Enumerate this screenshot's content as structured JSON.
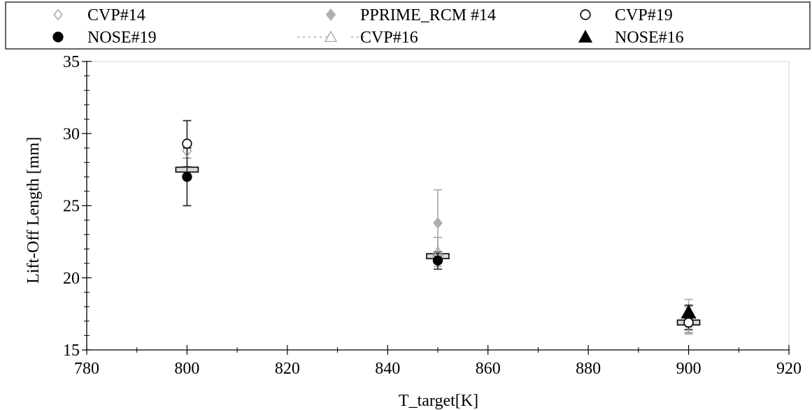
{
  "chart_data": {
    "type": "scatter",
    "xlabel": "T_target[K]",
    "ylabel": "Lift-Off Length [mm]",
    "xlim": [
      780,
      920
    ],
    "ylim": [
      15,
      35
    ],
    "x_ticks": [
      780,
      800,
      820,
      840,
      860,
      880,
      900,
      920
    ],
    "y_ticks": [
      15,
      20,
      25,
      30,
      35
    ],
    "legend_placement": "top",
    "series": [
      {
        "name": "CVP#14",
        "marker": "diamond-open",
        "color": "#9a9a9a",
        "points": [
          {
            "x": 800,
            "y": 28.8,
            "err": 0.5
          },
          {
            "x": 850,
            "y": 21.5,
            "err": 0.3
          },
          {
            "x": 900,
            "y": 16.7,
            "err": 0.5
          }
        ]
      },
      {
        "name": "PPRIME_RCM #14",
        "marker": "diamond-filled",
        "color": "#b0b0b0",
        "points": [
          {
            "x": 850,
            "y": 23.8,
            "err": 2.3
          },
          {
            "x": 900,
            "y": 17.3,
            "err": 1.2
          }
        ]
      },
      {
        "name": "CVP#19",
        "marker": "circle-open",
        "color": "#000000",
        "points": [
          {
            "x": 800,
            "y": 29.3,
            "err": 1.6
          },
          {
            "x": 900,
            "y": 16.9,
            "err": 0.5
          }
        ]
      },
      {
        "name": "NOSE#19",
        "marker": "circle-filled",
        "color": "#000000",
        "points": [
          {
            "x": 800,
            "y": 27.0,
            "err": 2.0
          },
          {
            "x": 850,
            "y": 21.2,
            "err": 0.6
          }
        ]
      },
      {
        "name": "CVP#16",
        "marker": "triangle-open",
        "color": "#aaaaaa",
        "points": [
          {
            "x": 850,
            "y": 21.8,
            "err": 1.0
          },
          {
            "x": 900,
            "y": 17.1,
            "err": 0.9
          }
        ]
      },
      {
        "name": "NOSE#16",
        "marker": "triangle-filled",
        "color": "#000000",
        "points": [
          {
            "x": 900,
            "y": 17.6,
            "err": 0.5
          }
        ]
      }
    ],
    "mean_boxes": [
      {
        "x": 800,
        "y": 27.5
      },
      {
        "x": 850,
        "y": 21.5
      },
      {
        "x": 900,
        "y": 16.9
      }
    ]
  }
}
